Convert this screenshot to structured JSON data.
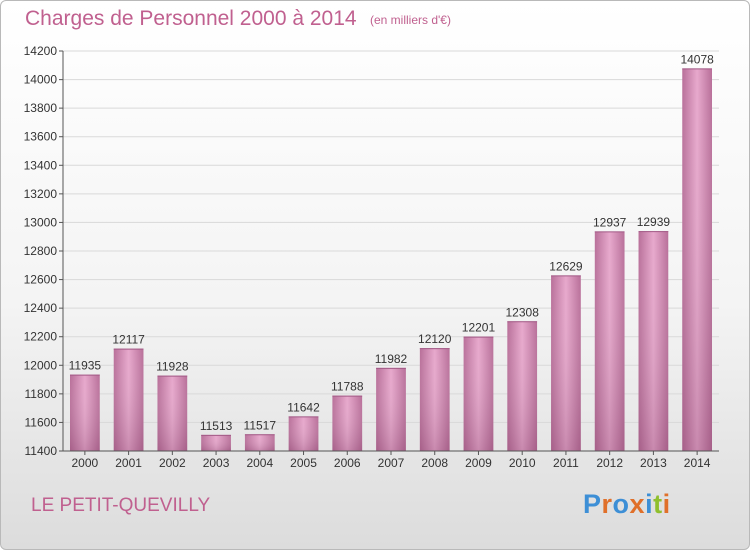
{
  "header": {
    "title": "Charges de Personnel 2000 à 2014",
    "subtitle": "(en milliers d'€)"
  },
  "footer": {
    "commune": "LE PETIT-QUEVILLY",
    "logo": {
      "l1": "P",
      "l2": "r",
      "l3": "o",
      "l4": "x",
      "l5": "i",
      "l6": "t",
      "l7": "i"
    }
  },
  "colors": {
    "title": "#c0608f",
    "bar_light": "#e7a8cc",
    "bar_dark": "#b86f99",
    "axis": "#555555",
    "grid": "#d9d9d9",
    "logo": [
      "#3d8fd6",
      "#e0702a",
      "#3d8fd6",
      "#e0702a",
      "#3d8fd6",
      "#8fbf2e",
      "#e0702a"
    ]
  },
  "chart_data": {
    "type": "bar",
    "title": "Charges de Personnel 2000 à 2014",
    "subtitle": "(en milliers d'€)",
    "categories": [
      "2000",
      "2001",
      "2002",
      "2003",
      "2004",
      "2005",
      "2006",
      "2007",
      "2008",
      "2009",
      "2010",
      "2011",
      "2012",
      "2013",
      "2014"
    ],
    "values": [
      11935,
      12117,
      11928,
      11513,
      11517,
      11642,
      11788,
      11982,
      12120,
      12201,
      12308,
      12629,
      12937,
      12939,
      14078
    ],
    "ylim": [
      11400,
      14200
    ],
    "yticks": [
      11400,
      11600,
      11800,
      12000,
      12200,
      12400,
      12600,
      12800,
      13000,
      13200,
      13400,
      13600,
      13800,
      14000,
      14200
    ],
    "grid": true,
    "legend": "none"
  }
}
